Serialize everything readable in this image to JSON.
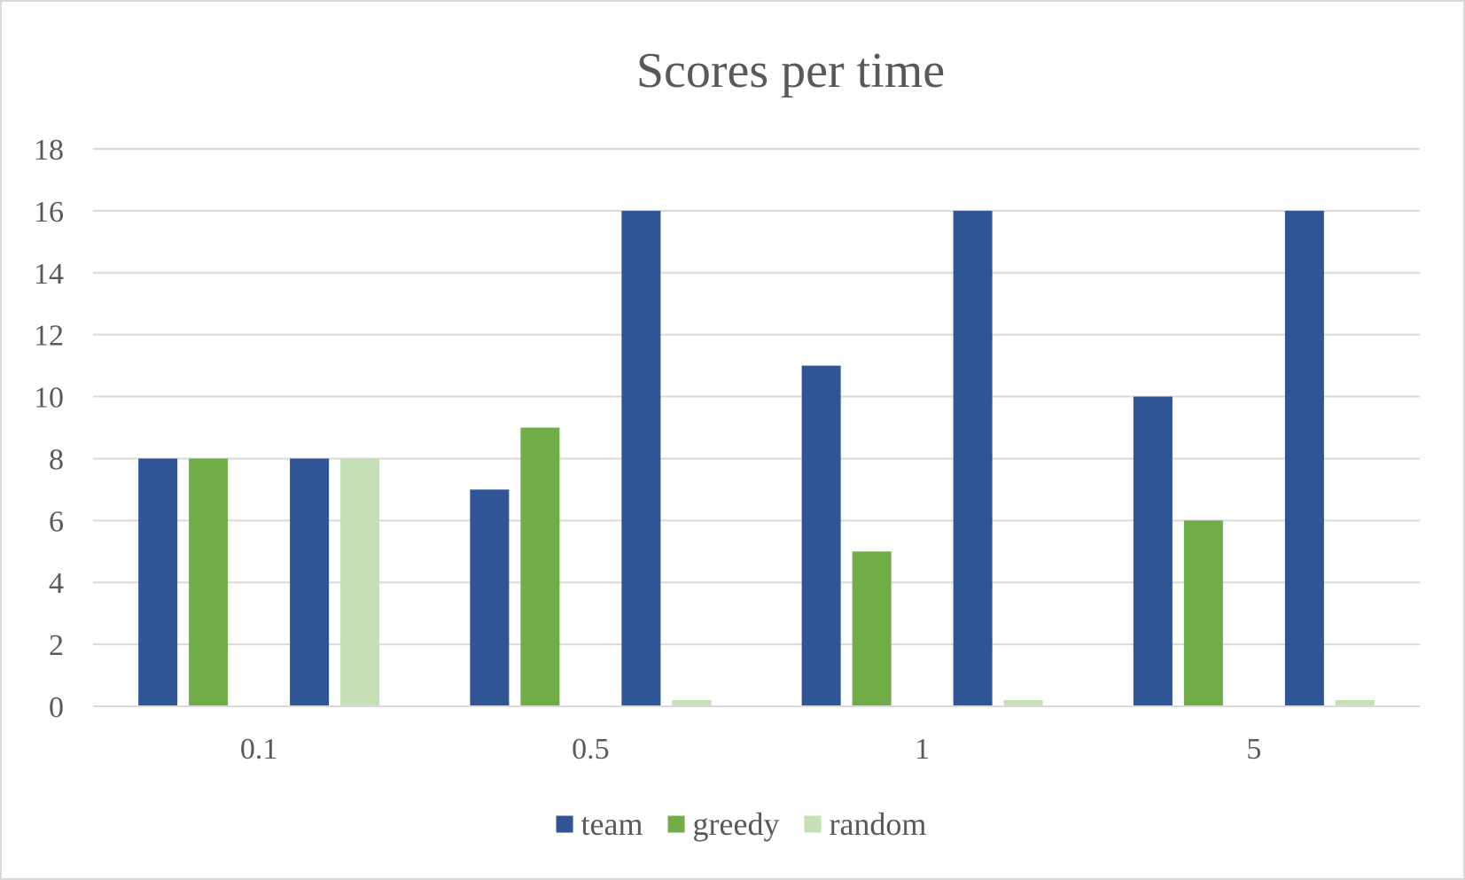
{
  "chart_data": {
    "type": "bar",
    "title": "Scores per time",
    "xlabel": "",
    "ylabel": "",
    "ylim": [
      0,
      18
    ],
    "yticks": [
      0,
      2,
      4,
      6,
      8,
      10,
      12,
      14,
      16,
      18
    ],
    "grid": true,
    "legend_position": "bottom",
    "groups": [
      {
        "label": "0.1",
        "bars": [
          {
            "series": "team",
            "value": 8
          },
          {
            "series": "greedy",
            "value": 8
          },
          {
            "series": "random",
            "value": 0
          },
          {
            "series": "team",
            "value": 8
          },
          {
            "series": "random",
            "value": 8
          }
        ]
      },
      {
        "label": "0.5",
        "bars": [
          {
            "series": "team",
            "value": 7
          },
          {
            "series": "greedy",
            "value": 9
          },
          {
            "series": "random",
            "value": 0
          },
          {
            "series": "team",
            "value": 16
          },
          {
            "series": "random",
            "value": 0.2
          }
        ]
      },
      {
        "label": "1",
        "bars": [
          {
            "series": "team",
            "value": 11
          },
          {
            "series": "greedy",
            "value": 5
          },
          {
            "series": "random",
            "value": 0
          },
          {
            "series": "team",
            "value": 16
          },
          {
            "series": "random",
            "value": 0.2
          }
        ]
      },
      {
        "label": "5",
        "bars": [
          {
            "series": "team",
            "value": 10
          },
          {
            "series": "greedy",
            "value": 6
          },
          {
            "series": "random",
            "value": 0
          },
          {
            "series": "team",
            "value": 16
          },
          {
            "series": "random",
            "value": 0.2
          }
        ]
      }
    ],
    "legend": [
      {
        "name": "team",
        "color": "#2f5597"
      },
      {
        "name": "greedy",
        "color": "#70ad47"
      },
      {
        "name": "random",
        "color": "#c5e0b4"
      }
    ]
  }
}
